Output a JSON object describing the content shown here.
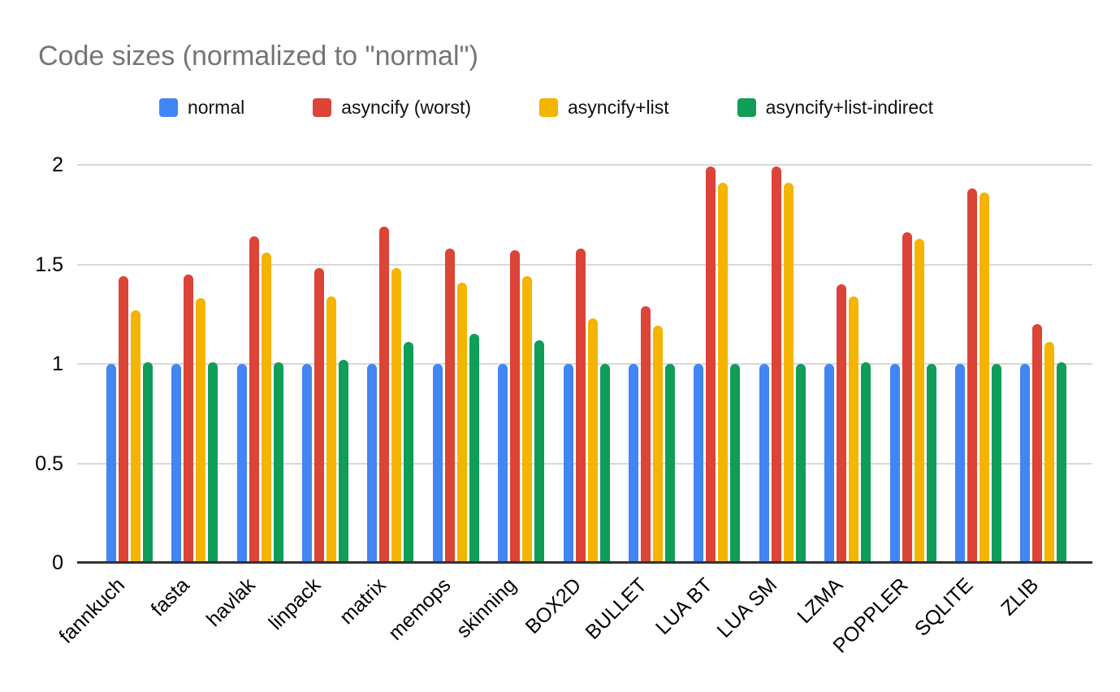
{
  "chart_data": {
    "type": "bar",
    "title": "Code sizes (normalized to \"normal\")",
    "categories": [
      "fannkuch",
      "fasta",
      "havlak",
      "linpack",
      "matrix",
      "memops",
      "skinning",
      "BOX2D",
      "BULLET",
      "LUA BT",
      "LUA SM",
      "LZMA",
      "POPPLER",
      "SQLITE",
      "ZLIB"
    ],
    "series": [
      {
        "name": "normal",
        "color": "#4285F4",
        "values": [
          1.0,
          1.0,
          1.0,
          1.0,
          1.0,
          1.0,
          1.0,
          1.0,
          1.0,
          1.0,
          1.0,
          1.0,
          1.0,
          1.0,
          1.0
        ]
      },
      {
        "name": "asyncify (worst)",
        "color": "#DB4437",
        "values": [
          1.44,
          1.45,
          1.64,
          1.48,
          1.69,
          1.58,
          1.57,
          1.58,
          1.29,
          1.99,
          1.99,
          1.4,
          1.66,
          1.88,
          1.2
        ]
      },
      {
        "name": "asyncify+list",
        "color": "#F4B400",
        "values": [
          1.27,
          1.33,
          1.56,
          1.34,
          1.48,
          1.41,
          1.44,
          1.23,
          1.19,
          1.91,
          1.91,
          1.34,
          1.63,
          1.86,
          1.11
        ]
      },
      {
        "name": "asyncify+list-indirect",
        "color": "#0F9D58",
        "values": [
          1.01,
          1.01,
          1.01,
          1.02,
          1.11,
          1.15,
          1.12,
          1.0,
          1.0,
          1.0,
          1.0,
          1.01,
          1.0,
          1.0,
          1.01
        ]
      }
    ],
    "xlabel": "",
    "ylabel": "",
    "ylim": [
      0,
      2
    ],
    "yticks": [
      0,
      0.5,
      1,
      1.5,
      2
    ],
    "ytick_labels": [
      "0",
      "0.5",
      "1",
      "1.5",
      "2"
    ],
    "grid": true,
    "legend_position": "top"
  },
  "colors": {
    "background": "#ffffff",
    "title_text": "#757575",
    "label_text": "#000000",
    "gridline": "#d9d9d9",
    "axis_line": "#333333"
  }
}
